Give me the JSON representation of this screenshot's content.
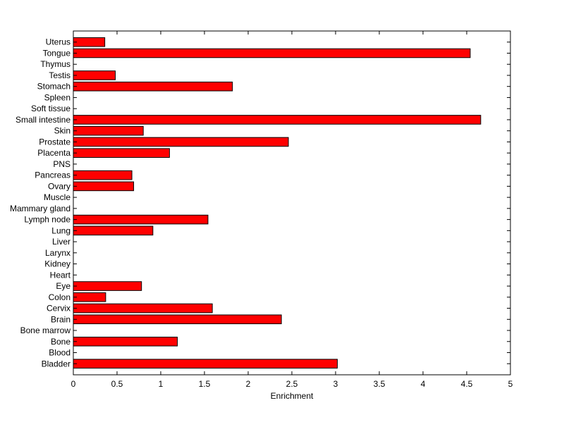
{
  "chart_data": {
    "type": "bar",
    "orientation": "horizontal",
    "title": "",
    "xlabel": "Enrichment",
    "ylabel": "",
    "xlim": [
      0,
      5
    ],
    "x_ticks": [
      0,
      0.5,
      1,
      1.5,
      2,
      2.5,
      3,
      3.5,
      4,
      4.5,
      5
    ],
    "x_tick_labels": [
      "0",
      "0.5",
      "1",
      "1.5",
      "2",
      "2.5",
      "3",
      "3.5",
      "4",
      "4.5",
      "5"
    ],
    "grid": false,
    "bar_color": "#ff0000",
    "categories": [
      "Bladder",
      "Blood",
      "Bone",
      "Bone marrow",
      "Brain",
      "Cervix",
      "Colon",
      "Eye",
      "Heart",
      "Kidney",
      "Larynx",
      "Liver",
      "Lung",
      "Lymph node",
      "Mammary gland",
      "Muscle",
      "Ovary",
      "Pancreas",
      "PNS",
      "Placenta",
      "Prostate",
      "Skin",
      "Small intestine",
      "Soft tissue",
      "Spleen",
      "Stomach",
      "Testis",
      "Thymus",
      "Tongue",
      "Uterus"
    ],
    "values": [
      3.02,
      0,
      1.19,
      0,
      2.38,
      1.59,
      0.37,
      0.78,
      0,
      0,
      0,
      0,
      0.91,
      1.54,
      0,
      0,
      0.69,
      0.67,
      0,
      1.1,
      2.46,
      0.8,
      4.66,
      0,
      0,
      1.82,
      0.48,
      0,
      4.54,
      0.36
    ]
  }
}
